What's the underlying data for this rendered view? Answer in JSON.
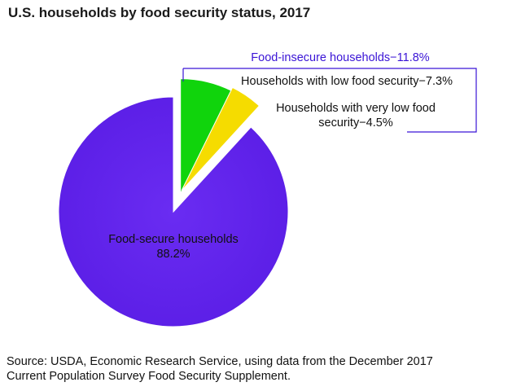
{
  "chart_data": {
    "type": "pie",
    "title": "U.S. households by food security status, 2017",
    "slices": [
      {
        "name": "Food-secure households",
        "value": 88.2,
        "label": "88.2%",
        "color": "#5b1ee6"
      },
      {
        "name": "Households with low food security",
        "value": 7.3,
        "label": "7.3%",
        "color": "#10d40c"
      },
      {
        "name": "Households with very low food security",
        "value": 4.5,
        "label": "4.5%",
        "color": "#f5dc00"
      }
    ],
    "group": {
      "name": "Food-insecure households",
      "value": 11.8,
      "label": "Food-insecure households−11.8%",
      "color": "#3a14d6"
    },
    "annotations": {
      "low": "Households with low food security−7.3%",
      "very_low_line1": "Households with very low food",
      "very_low_line2": "security−4.5%",
      "secure_line1": "Food-secure households",
      "secure_line2": "88.2%"
    }
  },
  "source": {
    "line1": "Source: USDA, Economic Research Service, using data from the December 2017",
    "line2": "Current Population Survey Food Security Supplement."
  }
}
